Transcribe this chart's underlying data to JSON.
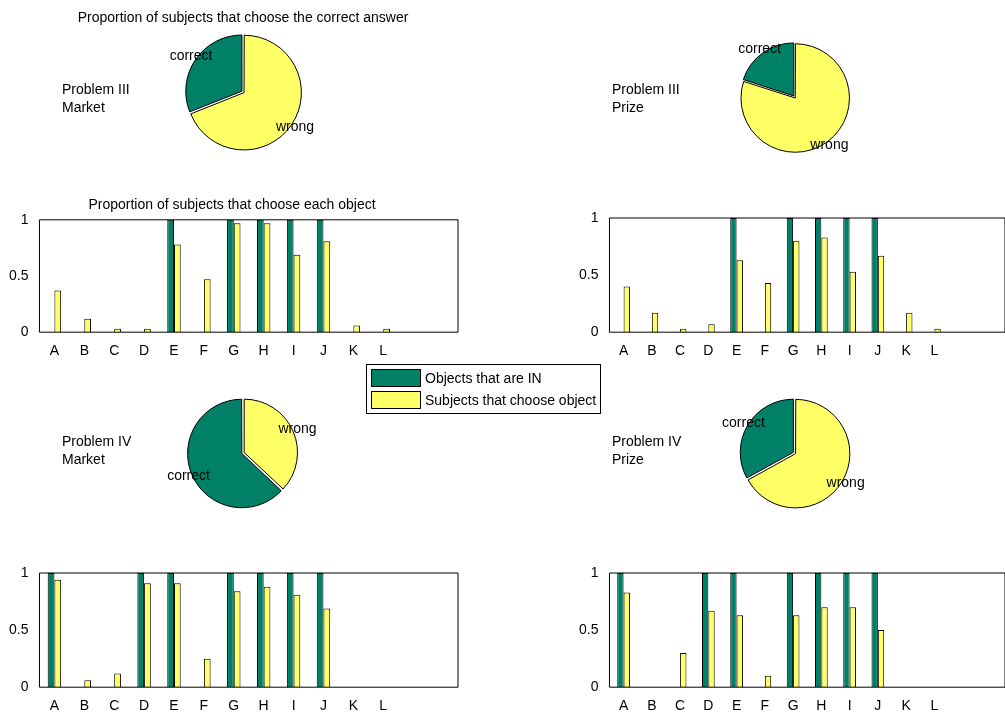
{
  "chart_data": [
    {
      "type": "pie",
      "title": "Proportion of subjects that choose the correct answer",
      "categories": [
        "correct",
        "wrong"
      ],
      "values": [
        31,
        69
      ],
      "colors": [
        "#008066",
        "#ffff66"
      ],
      "annotations": [
        "Problem III\nMarket"
      ]
    },
    {
      "type": "pie",
      "categories": [
        "correct",
        "wrong"
      ],
      "values": [
        20,
        80
      ],
      "colors": [
        "#008066",
        "#ffff66"
      ],
      "annotations": [
        "Problem III\nPrize"
      ]
    },
    {
      "type": "bar",
      "title": "Proportion of subjects that choose each object",
      "categories": [
        "A",
        "B",
        "C",
        "D",
        "E",
        "F",
        "G",
        "H",
        "I",
        "J",
        "K",
        "L",
        null,
        null
      ],
      "ylim": [
        0,
        1
      ],
      "yticks": [
        0,
        0.5,
        1
      ],
      "legend": "bottom right",
      "series": [
        {
          "name": "Objects that are IN",
          "color": "#008066",
          "values": [
            0,
            0,
            0,
            0,
            1,
            0,
            1,
            1,
            1,
            1,
            0,
            0,
            null,
            null
          ]
        },
        {
          "name": "Subjects that choose object",
          "color": "#ffff66",
          "values": [
            0.37,
            0.12,
            0.03,
            0.03,
            0.78,
            0.47,
            0.97,
            0.97,
            0.69,
            0.81,
            0.06,
            0.03,
            null,
            null
          ]
        }
      ]
    },
    {
      "type": "bar",
      "categories": [
        "A",
        "B",
        "C",
        "D",
        "E",
        "F",
        "G",
        "H",
        "I",
        "J",
        "K",
        "L",
        null,
        null
      ],
      "ylim": [
        0,
        1
      ],
      "yticks": [
        0,
        0.5,
        1
      ],
      "series": [
        {
          "color": "#008066",
          "values": [
            0,
            0,
            0,
            0,
            1,
            0,
            1,
            1,
            1,
            1,
            0,
            0,
            null,
            null
          ]
        },
        {
          "color": "#ffff66",
          "values": [
            0.4,
            0.17,
            0.03,
            0.07,
            0.63,
            0.43,
            0.8,
            0.83,
            0.53,
            0.67,
            0.17,
            0.03,
            null,
            null
          ]
        }
      ]
    },
    {
      "type": "pie",
      "categories": [
        "correct",
        "wrong"
      ],
      "values": [
        63,
        37
      ],
      "colors": [
        "#008066",
        "#ffff66"
      ],
      "annotations": [
        "Problem IV\nMarket"
      ]
    },
    {
      "type": "pie",
      "categories": [
        "correct",
        "wrong"
      ],
      "values": [
        33,
        67
      ],
      "colors": [
        "#008066",
        "#ffff66"
      ],
      "annotations": [
        "Problem IV\nPrize"
      ]
    },
    {
      "type": "bar",
      "categories": [
        "A",
        "B",
        "C",
        "D",
        "E",
        "F",
        "G",
        "H",
        "I",
        "J",
        "K",
        "L",
        null,
        null
      ],
      "ylim": [
        0,
        1
      ],
      "yticks": [
        0,
        0.5,
        1
      ],
      "series": [
        {
          "color": "#008066",
          "values": [
            1,
            0,
            0,
            1,
            1,
            0,
            1,
            1,
            1,
            1,
            0,
            0,
            null,
            null
          ]
        },
        {
          "color": "#ffff66",
          "values": [
            0.94,
            0.06,
            0.12,
            0.91,
            0.91,
            0.25,
            0.84,
            0.88,
            0.81,
            0.69,
            0,
            0,
            null,
            null
          ]
        }
      ]
    },
    {
      "type": "bar",
      "categories": [
        "A",
        "B",
        "C",
        "D",
        "E",
        "F",
        "G",
        "H",
        "I",
        "J",
        "K",
        "L",
        null,
        null
      ],
      "ylim": [
        0,
        1
      ],
      "yticks": [
        0,
        0.5,
        1
      ],
      "series": [
        {
          "color": "#008066",
          "values": [
            1,
            0,
            0,
            1,
            1,
            0,
            1,
            1,
            1,
            1,
            0,
            0,
            null,
            null
          ]
        },
        {
          "color": "#ffff66",
          "values": [
            0.83,
            0,
            0.3,
            0.67,
            0.63,
            0.1,
            0.63,
            0.7,
            0.7,
            0.5,
            0,
            0,
            null,
            null
          ]
        }
      ]
    }
  ]
}
